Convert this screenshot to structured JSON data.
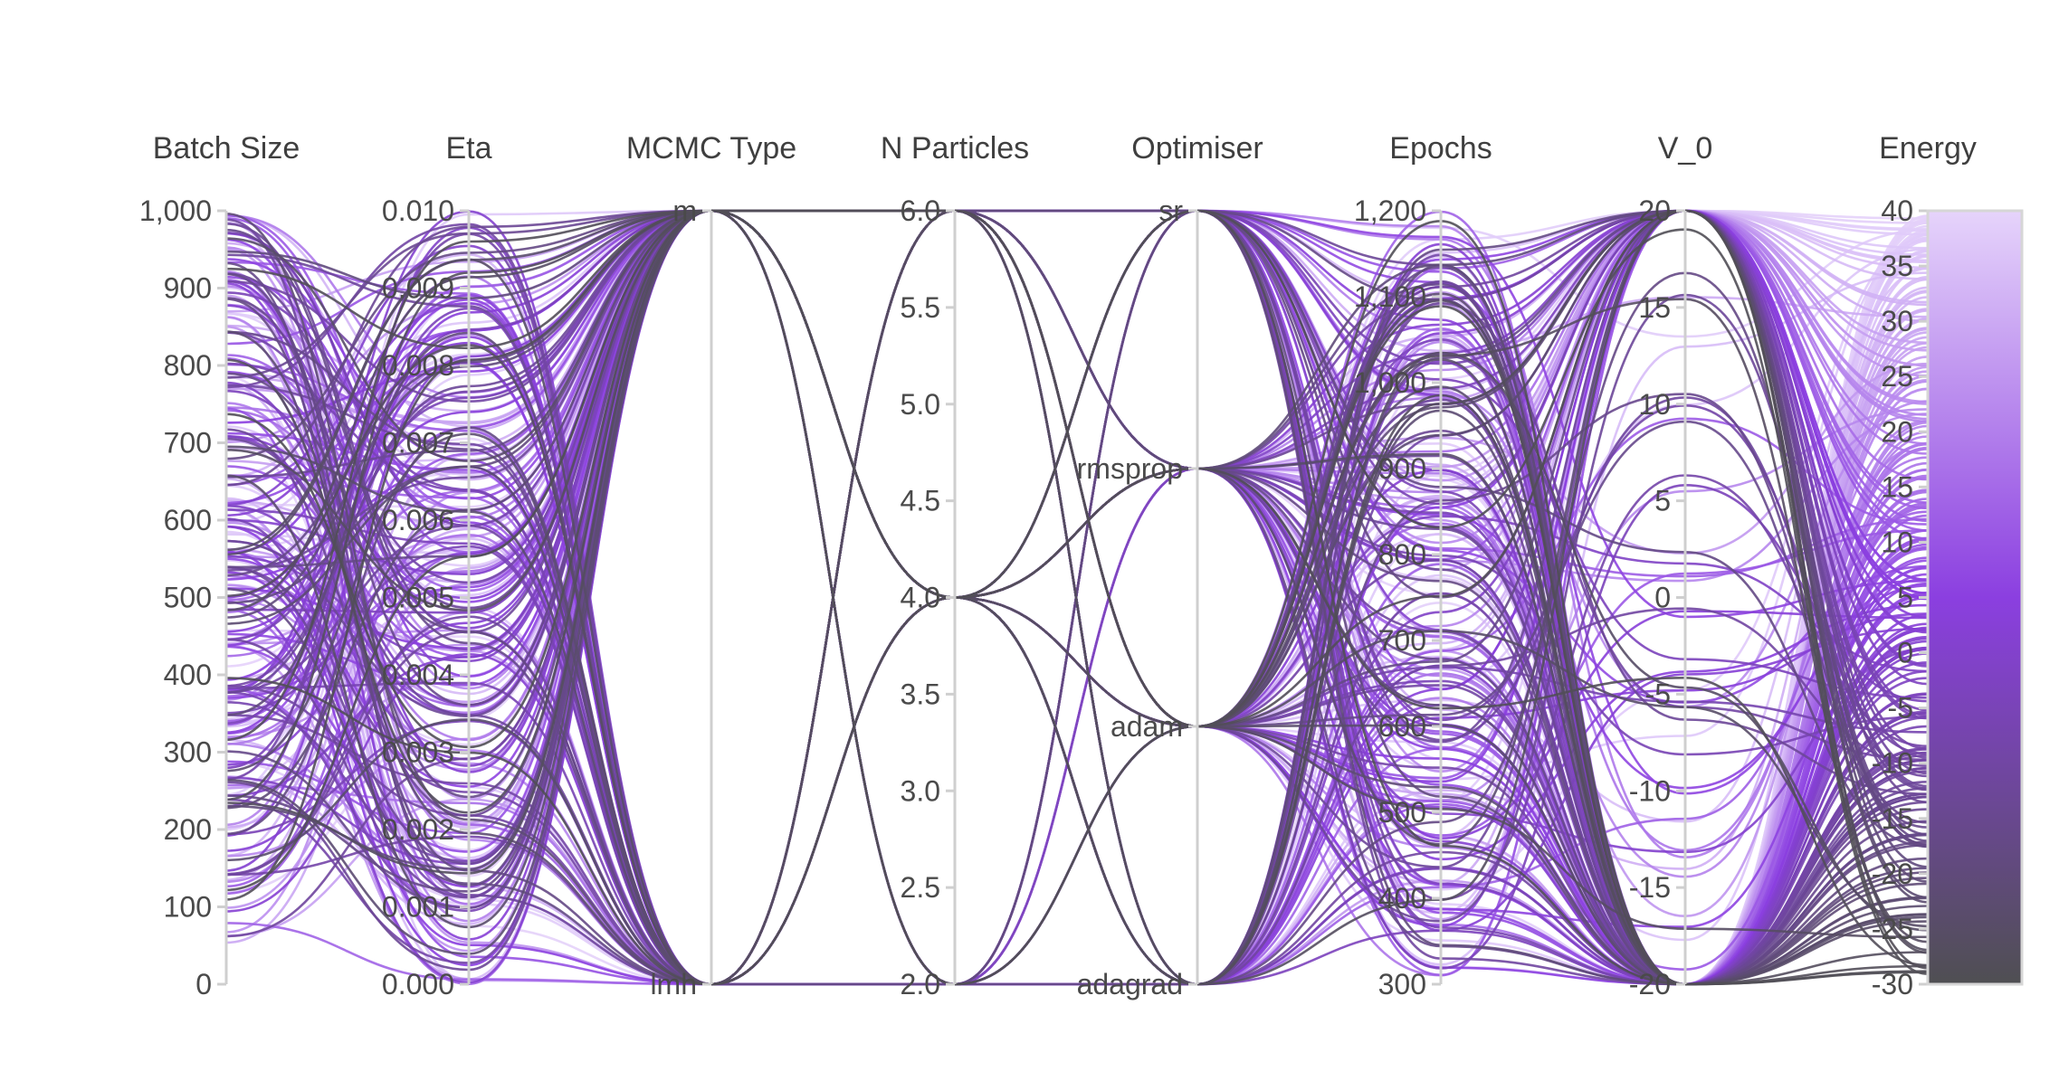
{
  "chart_data": {
    "type": "parallel_coordinates",
    "axes": [
      {
        "key": "batch_size",
        "label": "Batch Size",
        "range": [
          0,
          1000
        ],
        "ticks": [
          "0",
          "100",
          "200",
          "300",
          "400",
          "500",
          "600",
          "700",
          "800",
          "900",
          "1,000"
        ],
        "tick_values": [
          0,
          100,
          200,
          300,
          400,
          500,
          600,
          700,
          800,
          900,
          1000
        ]
      },
      {
        "key": "eta",
        "label": "Eta",
        "range": [
          0,
          0.01
        ],
        "ticks": [
          "0.000",
          "0.001",
          "0.002",
          "0.003",
          "0.004",
          "0.005",
          "0.006",
          "0.007",
          "0.008",
          "0.009",
          "0.010"
        ],
        "tick_values": [
          0,
          0.001,
          0.002,
          0.003,
          0.004,
          0.005,
          0.006,
          0.007,
          0.008,
          0.009,
          0.01
        ]
      },
      {
        "key": "mcmc_type",
        "label": "MCMC Type",
        "categorical": true,
        "ticks": [
          "lmh",
          "m"
        ],
        "tick_values": [
          0,
          1
        ],
        "range": [
          0,
          1
        ]
      },
      {
        "key": "n_particles",
        "label": "N Particles",
        "range": [
          2,
          6
        ],
        "ticks": [
          "2.0",
          "2.5",
          "3.0",
          "3.5",
          "4.0",
          "4.5",
          "5.0",
          "5.5",
          "6.0"
        ],
        "tick_values": [
          2,
          2.5,
          3,
          3.5,
          4,
          4.5,
          5,
          5.5,
          6
        ]
      },
      {
        "key": "optimiser",
        "label": "Optimiser",
        "categorical": true,
        "ticks": [
          "adagrad",
          "adam",
          "rmsprop",
          "sr"
        ],
        "tick_values": [
          0,
          1,
          2,
          3
        ],
        "range": [
          0,
          3
        ]
      },
      {
        "key": "epochs",
        "label": "Epochs",
        "range": [
          300,
          1200
        ],
        "ticks": [
          "300",
          "400",
          "500",
          "600",
          "700",
          "800",
          "900",
          "1,000",
          "1,100",
          "1,200"
        ],
        "tick_values": [
          300,
          400,
          500,
          600,
          700,
          800,
          900,
          1000,
          1100,
          1200
        ]
      },
      {
        "key": "v_0",
        "label": "V_0",
        "range": [
          -20,
          20
        ],
        "ticks": [
          "-20",
          "-15",
          "-10",
          "-5",
          "0",
          "5",
          "10",
          "15",
          "20"
        ],
        "tick_values": [
          -20,
          -15,
          -10,
          -5,
          0,
          5,
          10,
          15,
          20
        ]
      },
      {
        "key": "energy",
        "label": "Energy",
        "range": [
          -30,
          40
        ],
        "ticks": [
          "-30",
          "-25",
          "-20",
          "-15",
          "-10",
          "-5",
          "0",
          "5",
          "10",
          "15",
          "20",
          "25",
          "30",
          "35",
          "40"
        ],
        "tick_values": [
          -30,
          -25,
          -20,
          -15,
          -10,
          -5,
          0,
          5,
          10,
          15,
          20,
          25,
          30,
          35,
          40
        ]
      }
    ],
    "colorscale": {
      "variable": "energy",
      "range": [
        -30,
        40
      ],
      "stops": [
        {
          "value": -30,
          "color": "#4f4f52"
        },
        {
          "value": 5,
          "color": "#8b3fe0"
        },
        {
          "value": 40,
          "color": "#e6d4fb"
        }
      ]
    },
    "grid": false,
    "legend": "colorbar-right",
    "sample_count": 260
  }
}
